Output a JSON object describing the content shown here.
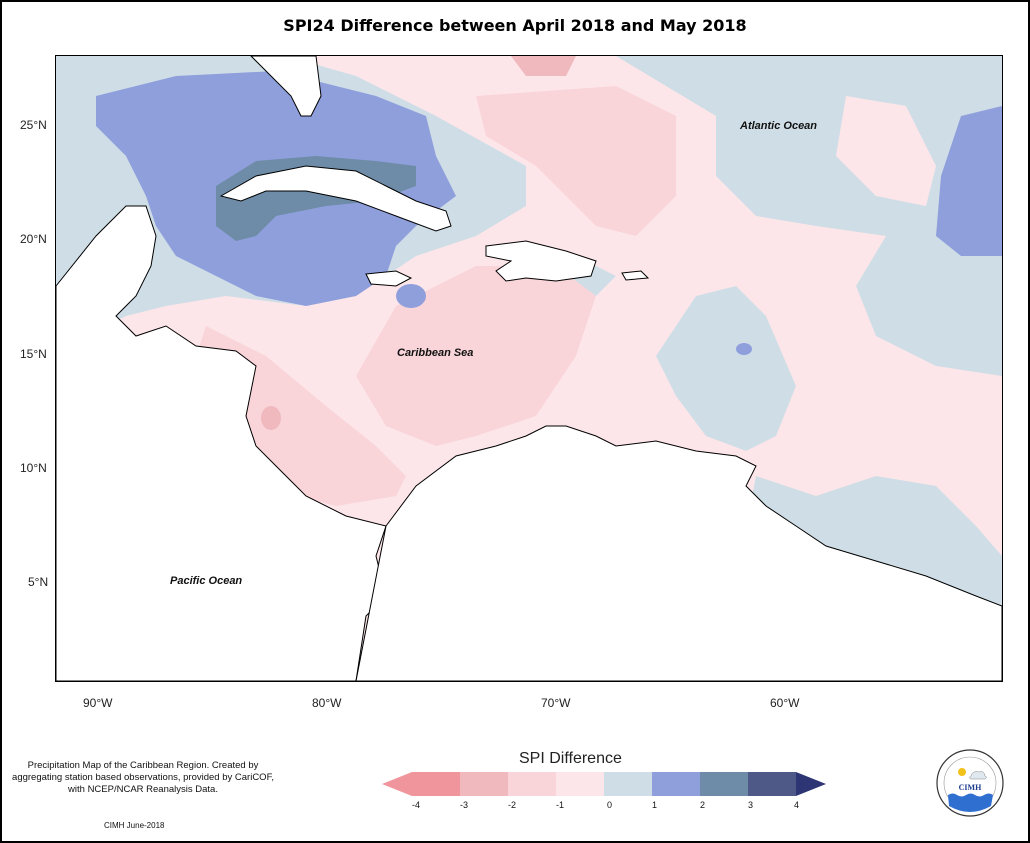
{
  "title": "SPI24 Difference between April 2018 and May 2018",
  "map": {
    "lat_labels": [
      "25°N",
      "20°N",
      "15°N",
      "10°N",
      "5°N"
    ],
    "lon_labels": [
      "90°W",
      "80°W",
      "70°W",
      "60°W"
    ],
    "places": {
      "atlantic": "Atlantic Ocean",
      "caribbean": "Caribbean Sea",
      "pacific": "Pacific Ocean"
    }
  },
  "info_text": "Precipitation Map of the Caribbean Region. Created by aggregating station based observations, provided by CariCOF, with NCEP/NCAR Reanalysis Data.",
  "credit": "CIMH June-2018",
  "legend": {
    "title": "SPI Difference",
    "ticks": [
      "-4",
      "-3",
      "-2",
      "-1",
      "0",
      "1",
      "2",
      "3",
      "4"
    ],
    "colors": [
      "#f1959c",
      "#f0b9be",
      "#f9d5da",
      "#fde6e9",
      "#cfdee6",
      "#8f9fdc",
      "#6e8ca8",
      "#4e5987"
    ]
  },
  "logo": {
    "text": "CIMH"
  }
}
